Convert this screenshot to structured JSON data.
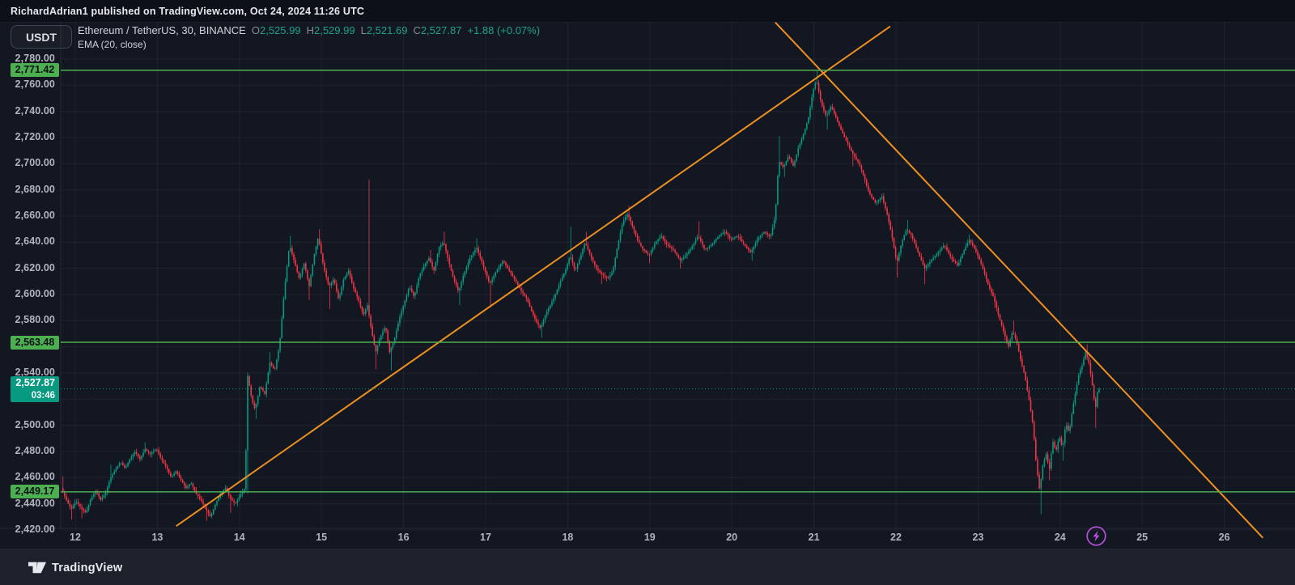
{
  "attribution": "RichardAdrian1 published on TradingView.com, Oct 24, 2024 11:26 UTC",
  "toolbar": {
    "currency_button": "USDT"
  },
  "legend": {
    "title": "Ethereum / TetherUS, 30, BINANCE",
    "ohlc": {
      "o_label": "O",
      "o": "2,525.99",
      "h_label": "H",
      "h": "2,529.99",
      "l_label": "L",
      "l": "2,521.69",
      "c_label": "C",
      "c": "2,527.87",
      "change": "+1.88 (+0.07%)"
    },
    "indicator": "EMA (20, close)"
  },
  "footer": {
    "brand": "TradingView"
  },
  "colors": {
    "background": "#131722",
    "candle_up": "#089981",
    "candle_down": "#f23645",
    "trendline": "#ee9020",
    "level_line": "#4caf50",
    "current_line": "#089981",
    "flash_icon": "#b44fd6",
    "grid": "rgba(134,142,163,0.10)",
    "axis_border": "rgba(134,142,163,0.16)"
  },
  "chart_data": {
    "type": "candlestick",
    "pair": "Ethereum / TetherUS",
    "interval": "30",
    "exchange": "BINANCE",
    "ohlc_current": {
      "open": 2525.99,
      "high": 2529.99,
      "low": 2521.69,
      "close": 2527.87,
      "change": 1.88,
      "change_pct": 0.07
    },
    "x_axis": {
      "labels": [
        "12",
        "13",
        "14",
        "15",
        "16",
        "17",
        "18",
        "19",
        "20",
        "21",
        "22",
        "23",
        "24",
        "25",
        "26"
      ],
      "first_day": 12,
      "last_day": 26
    },
    "y_axis": {
      "min_tick": 2420,
      "max_tick": 2780,
      "step": 20,
      "hidden_ticks": [
        2560,
        2520
      ]
    },
    "price_levels": [
      {
        "price": 2771.42,
        "label": "2,771.42"
      },
      {
        "price": 2563.48,
        "label": "2,563.48"
      },
      {
        "price": 2449.17,
        "label": "2,449.17"
      }
    ],
    "current_price": {
      "price": 2527.87,
      "label": "2,527.87",
      "countdown": "03:46"
    },
    "trendlines": [
      {
        "name": "ascending-support",
        "d1": 13.23,
        "p1": 2423,
        "d2": 21.93,
        "p2": 2805
      },
      {
        "name": "descending-resistance",
        "d1": 20.53,
        "p1": 2808,
        "d2": 26.47,
        "p2": 2414
      }
    ],
    "candles": {
      "interval_days": 0.0208333,
      "start_day": 11.84,
      "end_day": 24.47,
      "path": [
        [
          11.84,
          2452,
          2461,
          null
        ],
        [
          11.9,
          2443,
          null,
          null
        ],
        [
          11.96,
          2436,
          null,
          2428
        ],
        [
          12.02,
          2442,
          null,
          null
        ],
        [
          12.08,
          2437,
          null,
          2429
        ],
        [
          12.14,
          2433,
          null,
          null
        ],
        [
          12.2,
          2444,
          null,
          null
        ],
        [
          12.26,
          2450,
          null,
          null
        ],
        [
          12.32,
          2443,
          null,
          null
        ],
        [
          12.38,
          2448,
          null,
          null
        ],
        [
          12.44,
          2460,
          2470,
          null
        ],
        [
          12.5,
          2466,
          null,
          null
        ],
        [
          12.56,
          2472,
          null,
          null
        ],
        [
          12.62,
          2467,
          null,
          null
        ],
        [
          12.68,
          2475,
          null,
          null
        ],
        [
          12.74,
          2480,
          null,
          null
        ],
        [
          12.8,
          2474,
          null,
          null
        ],
        [
          12.86,
          2482,
          2487,
          null
        ],
        [
          12.92,
          2478,
          null,
          null
        ],
        [
          13.0,
          2482,
          null,
          null
        ],
        [
          13.06,
          2474,
          null,
          null
        ],
        [
          13.12,
          2468,
          null,
          null
        ],
        [
          13.18,
          2460,
          null,
          null
        ],
        [
          13.24,
          2465,
          null,
          null
        ],
        [
          13.3,
          2458,
          null,
          null
        ],
        [
          13.36,
          2452,
          null,
          null
        ],
        [
          13.42,
          2456,
          null,
          null
        ],
        [
          13.48,
          2448,
          null,
          null
        ],
        [
          13.54,
          2443,
          null,
          null
        ],
        [
          13.6,
          2436,
          null,
          2427
        ],
        [
          13.66,
          2430,
          null,
          null
        ],
        [
          13.72,
          2440,
          null,
          null
        ],
        [
          13.78,
          2448,
          null,
          null
        ],
        [
          13.84,
          2452,
          null,
          null
        ],
        [
          13.9,
          2444,
          null,
          2433
        ],
        [
          13.96,
          2440,
          null,
          null
        ],
        [
          14.02,
          2447,
          null,
          null
        ],
        [
          14.08,
          2452,
          null,
          null
        ],
        [
          14.11,
          2538,
          null,
          2448
        ],
        [
          14.16,
          2520,
          null,
          null
        ],
        [
          14.2,
          2512,
          null,
          2505
        ],
        [
          14.26,
          2530,
          null,
          null
        ],
        [
          14.32,
          2524,
          null,
          null
        ],
        [
          14.38,
          2548,
          2556,
          null
        ],
        [
          14.44,
          2542,
          null,
          null
        ],
        [
          14.5,
          2562,
          null,
          null
        ],
        [
          14.56,
          2605,
          null,
          null
        ],
        [
          14.62,
          2638,
          2645,
          null
        ],
        [
          14.68,
          2625,
          null,
          null
        ],
        [
          14.74,
          2612,
          null,
          null
        ],
        [
          14.8,
          2624,
          null,
          null
        ],
        [
          14.86,
          2606,
          null,
          2596
        ],
        [
          14.92,
          2630,
          null,
          null
        ],
        [
          14.97,
          2644,
          2650,
          null
        ],
        [
          15.04,
          2620,
          null,
          null
        ],
        [
          15.1,
          2606,
          null,
          2589
        ],
        [
          15.16,
          2612,
          null,
          null
        ],
        [
          15.22,
          2596,
          null,
          null
        ],
        [
          15.28,
          2612,
          null,
          null
        ],
        [
          15.34,
          2618,
          null,
          null
        ],
        [
          15.4,
          2605,
          null,
          null
        ],
        [
          15.46,
          2596,
          null,
          null
        ],
        [
          15.52,
          2584,
          null,
          null
        ],
        [
          15.57,
          2592,
          2688,
          null
        ],
        [
          15.62,
          2572,
          null,
          null
        ],
        [
          15.67,
          2556,
          null,
          2543
        ],
        [
          15.73,
          2568,
          null,
          null
        ],
        [
          15.79,
          2576,
          null,
          null
        ],
        [
          15.84,
          2556,
          null,
          2542
        ],
        [
          15.9,
          2566,
          null,
          null
        ],
        [
          15.96,
          2582,
          null,
          null
        ],
        [
          16.02,
          2594,
          null,
          null
        ],
        [
          16.08,
          2606,
          null,
          null
        ],
        [
          16.14,
          2598,
          null,
          null
        ],
        [
          16.2,
          2614,
          null,
          null
        ],
        [
          16.26,
          2622,
          null,
          null
        ],
        [
          16.32,
          2628,
          2634,
          null
        ],
        [
          16.38,
          2618,
          null,
          null
        ],
        [
          16.44,
          2636,
          null,
          null
        ],
        [
          16.5,
          2640,
          2648,
          null
        ],
        [
          16.56,
          2625,
          null,
          null
        ],
        [
          16.62,
          2612,
          null,
          null
        ],
        [
          16.68,
          2602,
          null,
          2592
        ],
        [
          16.74,
          2615,
          null,
          null
        ],
        [
          16.82,
          2628,
          null,
          null
        ],
        [
          16.9,
          2636,
          2643,
          null
        ],
        [
          16.98,
          2622,
          null,
          null
        ],
        [
          17.06,
          2608,
          null,
          2590
        ],
        [
          17.14,
          2618,
          null,
          null
        ],
        [
          17.22,
          2626,
          null,
          null
        ],
        [
          17.3,
          2618,
          null,
          null
        ],
        [
          17.38,
          2610,
          null,
          null
        ],
        [
          17.44,
          2603,
          null,
          null
        ],
        [
          17.5,
          2598,
          null,
          null
        ],
        [
          17.56,
          2589,
          null,
          null
        ],
        [
          17.62,
          2580,
          null,
          null
        ],
        [
          17.68,
          2574,
          null,
          2567
        ],
        [
          17.74,
          2585,
          null,
          null
        ],
        [
          17.8,
          2592,
          null,
          null
        ],
        [
          17.86,
          2600,
          null,
          null
        ],
        [
          17.92,
          2610,
          null,
          null
        ],
        [
          17.98,
          2618,
          null,
          null
        ],
        [
          18.04,
          2630,
          2652,
          null
        ],
        [
          18.1,
          2618,
          null,
          null
        ],
        [
          18.16,
          2628,
          null,
          null
        ],
        [
          18.22,
          2640,
          2648,
          null
        ],
        [
          18.3,
          2628,
          null,
          null
        ],
        [
          18.36,
          2620,
          null,
          null
        ],
        [
          18.42,
          2616,
          null,
          2608
        ],
        [
          18.5,
          2612,
          null,
          null
        ],
        [
          18.56,
          2618,
          null,
          null
        ],
        [
          18.62,
          2638,
          null,
          null
        ],
        [
          18.68,
          2655,
          null,
          null
        ],
        [
          18.74,
          2662,
          2668,
          null
        ],
        [
          18.8,
          2652,
          null,
          null
        ],
        [
          18.86,
          2642,
          null,
          null
        ],
        [
          18.92,
          2635,
          null,
          null
        ],
        [
          19.0,
          2630,
          null,
          2624
        ],
        [
          19.08,
          2640,
          null,
          null
        ],
        [
          19.15,
          2645,
          null,
          null
        ],
        [
          19.22,
          2638,
          null,
          null
        ],
        [
          19.3,
          2634,
          null,
          null
        ],
        [
          19.38,
          2626,
          null,
          2620
        ],
        [
          19.45,
          2630,
          null,
          null
        ],
        [
          19.52,
          2636,
          null,
          null
        ],
        [
          19.6,
          2645,
          2656,
          null
        ],
        [
          19.68,
          2634,
          null,
          null
        ],
        [
          19.76,
          2638,
          null,
          null
        ],
        [
          19.84,
          2644,
          null,
          null
        ],
        [
          19.92,
          2648,
          null,
          null
        ],
        [
          20.0,
          2642,
          null,
          null
        ],
        [
          20.08,
          2645,
          null,
          null
        ],
        [
          20.16,
          2638,
          null,
          null
        ],
        [
          20.24,
          2632,
          null,
          2626
        ],
        [
          20.32,
          2642,
          null,
          null
        ],
        [
          20.4,
          2648,
          null,
          null
        ],
        [
          20.48,
          2644,
          null,
          null
        ],
        [
          20.54,
          2660,
          null,
          null
        ],
        [
          20.58,
          2702,
          2721,
          null
        ],
        [
          20.64,
          2697,
          null,
          2690
        ],
        [
          20.7,
          2706,
          null,
          null
        ],
        [
          20.76,
          2698,
          null,
          null
        ],
        [
          20.82,
          2712,
          null,
          null
        ],
        [
          20.88,
          2722,
          null,
          null
        ],
        [
          20.94,
          2734,
          null,
          null
        ],
        [
          21.0,
          2756,
          null,
          null
        ],
        [
          21.04,
          2764,
          2771,
          null
        ],
        [
          21.1,
          2746,
          null,
          null
        ],
        [
          21.16,
          2736,
          null,
          2726
        ],
        [
          21.22,
          2744,
          null,
          null
        ],
        [
          21.28,
          2735,
          null,
          null
        ],
        [
          21.34,
          2726,
          null,
          null
        ],
        [
          21.4,
          2718,
          null,
          null
        ],
        [
          21.48,
          2708,
          null,
          2698
        ],
        [
          21.56,
          2700,
          null,
          null
        ],
        [
          21.62,
          2690,
          null,
          null
        ],
        [
          21.68,
          2678,
          null,
          null
        ],
        [
          21.76,
          2670,
          null,
          null
        ],
        [
          21.84,
          2675,
          null,
          null
        ],
        [
          21.9,
          2662,
          null,
          null
        ],
        [
          21.96,
          2645,
          null,
          null
        ],
        [
          22.02,
          2624,
          null,
          2613
        ],
        [
          22.08,
          2640,
          null,
          null
        ],
        [
          22.14,
          2650,
          2657,
          null
        ],
        [
          22.2,
          2645,
          null,
          null
        ],
        [
          22.28,
          2632,
          null,
          null
        ],
        [
          22.36,
          2620,
          null,
          2608
        ],
        [
          22.44,
          2626,
          null,
          null
        ],
        [
          22.52,
          2632,
          null,
          null
        ],
        [
          22.6,
          2638,
          null,
          null
        ],
        [
          22.68,
          2628,
          null,
          null
        ],
        [
          22.76,
          2622,
          null,
          null
        ],
        [
          22.84,
          2634,
          null,
          null
        ],
        [
          22.9,
          2642,
          2646,
          null
        ],
        [
          22.96,
          2636,
          null,
          null
        ],
        [
          23.02,
          2628,
          null,
          null
        ],
        [
          23.08,
          2618,
          null,
          null
        ],
        [
          23.14,
          2606,
          null,
          null
        ],
        [
          23.2,
          2598,
          null,
          2590
        ],
        [
          23.26,
          2584,
          null,
          null
        ],
        [
          23.32,
          2572,
          null,
          2565
        ],
        [
          23.38,
          2560,
          null,
          null
        ],
        [
          23.43,
          2572,
          2580,
          null
        ],
        [
          23.48,
          2564,
          null,
          null
        ],
        [
          23.53,
          2550,
          null,
          null
        ],
        [
          23.58,
          2538,
          null,
          null
        ],
        [
          23.63,
          2520,
          null,
          null
        ],
        [
          23.68,
          2500,
          null,
          null
        ],
        [
          23.72,
          2470,
          null,
          null
        ],
        [
          23.76,
          2450,
          null,
          2432
        ],
        [
          23.8,
          2470,
          null,
          null
        ],
        [
          23.84,
          2478,
          null,
          null
        ],
        [
          23.88,
          2466,
          null,
          2458
        ],
        [
          23.92,
          2488,
          null,
          null
        ],
        [
          23.96,
          2480,
          null,
          null
        ],
        [
          24.0,
          2492,
          null,
          null
        ],
        [
          24.04,
          2482,
          null,
          2473
        ],
        [
          24.08,
          2502,
          null,
          null
        ],
        [
          24.12,
          2494,
          null,
          null
        ],
        [
          24.16,
          2512,
          null,
          null
        ],
        [
          24.2,
          2526,
          null,
          null
        ],
        [
          24.24,
          2540,
          null,
          null
        ],
        [
          24.28,
          2546,
          null,
          null
        ],
        [
          24.32,
          2556,
          2562,
          null
        ],
        [
          24.36,
          2548,
          null,
          null
        ],
        [
          24.4,
          2532,
          null,
          null
        ],
        [
          24.44,
          2512,
          null,
          2498
        ],
        [
          24.47,
          2528,
          null,
          null
        ]
      ]
    }
  }
}
